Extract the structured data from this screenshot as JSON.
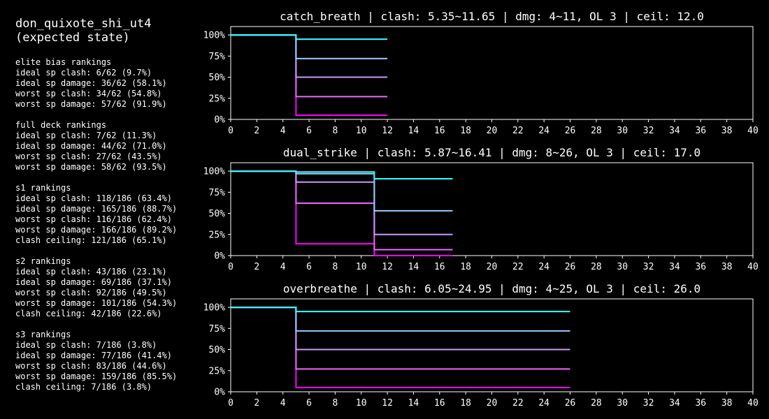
{
  "sidebar": {
    "title": [
      "don_quixote_shi_ut4",
      "(expected state)"
    ],
    "sections": [
      {
        "lines": [
          "elite bias rankings",
          "ideal sp clash: 6/62 (9.7%)",
          "ideal sp damage: 36/62 (58.1%)",
          "worst sp clash: 34/62 (54.8%)",
          "worst sp damage: 57/62 (91.9%)"
        ]
      },
      {
        "lines": [
          "full deck rankings",
          "ideal sp clash: 7/62 (11.3%)",
          "ideal sp damage: 44/62 (71.0%)",
          "worst sp clash: 27/62 (43.5%)",
          "worst sp damage: 58/62 (93.5%)"
        ]
      },
      {
        "lines": [
          "s1 rankings",
          "ideal sp clash: 118/186 (63.4%)",
          "ideal sp damage: 165/186 (88.7%)",
          "worst sp clash: 116/186 (62.4%)",
          "worst sp damage: 166/186 (89.2%)",
          "clash ceiling: 121/186 (65.1%)"
        ]
      },
      {
        "lines": [
          "s2 rankings",
          "ideal sp clash: 43/186 (23.1%)",
          "ideal sp damage: 69/186 (37.1%)",
          "worst sp clash: 92/186 (49.5%)",
          "worst sp damage: 101/186 (54.3%)",
          "clash ceiling: 42/186 (22.6%)"
        ]
      },
      {
        "lines": [
          "s3 rankings",
          "ideal sp clash: 7/186 (3.8%)",
          "ideal sp damage: 77/186 (41.4%)",
          "worst sp clash: 83/186 (44.6%)",
          "worst sp damage: 159/186 (85.5%)",
          "clash ceiling: 7/186 (3.8%)"
        ]
      }
    ]
  },
  "chart_data": [
    {
      "type": "line",
      "title": "catch_breath | clash: 5.35~11.65 | dmg: 4~11, OL 3 | ceil: 12.0",
      "xlim": [
        0,
        40
      ],
      "ylim": [
        0,
        1.1
      ],
      "x_ticks": [
        0,
        2,
        4,
        6,
        8,
        10,
        12,
        14,
        16,
        18,
        20,
        22,
        24,
        26,
        28,
        30,
        32,
        34,
        36,
        38,
        40
      ],
      "y_ticks": [
        0,
        0.25,
        0.5,
        0.75,
        1.0
      ],
      "y_tick_labels": [
        "0%",
        "25%",
        "50%",
        "75%",
        "100%"
      ],
      "step_x": 5,
      "end_x": 12,
      "series": [
        {
          "color": "#ff00ff",
          "y_before": 1.0,
          "y_after": 0.05
        },
        {
          "color": "#ee66ff",
          "y_before": 1.0,
          "y_after": 0.27
        },
        {
          "color": "#cc99ff",
          "y_before": 1.0,
          "y_after": 0.5
        },
        {
          "color": "#99ccff",
          "y_before": 1.0,
          "y_after": 0.72
        },
        {
          "color": "#33ffff",
          "y_before": 1.0,
          "y_after": 0.95
        }
      ]
    },
    {
      "type": "line",
      "title": "dual_strike | clash: 5.87~16.41 | dmg: 8~26, OL 3 | ceil: 17.0",
      "xlim": [
        0,
        40
      ],
      "ylim": [
        0,
        1.1
      ],
      "x_ticks": [
        0,
        2,
        4,
        6,
        8,
        10,
        12,
        14,
        16,
        18,
        20,
        22,
        24,
        26,
        28,
        30,
        32,
        34,
        36,
        38,
        40
      ],
      "y_ticks": [
        0,
        0.25,
        0.5,
        0.75,
        1.0
      ],
      "y_tick_labels": [
        "0%",
        "25%",
        "50%",
        "75%",
        "100%"
      ],
      "step_x1": 5,
      "step_x2": 11,
      "end_x": 17,
      "series": [
        {
          "color": "#ff00ff",
          "y0": 1.0,
          "y1": 0.14,
          "y2": 0.0
        },
        {
          "color": "#ee66ff",
          "y0": 1.0,
          "y1": 0.62,
          "y2": 0.07
        },
        {
          "color": "#cc99ff",
          "y0": 1.0,
          "y1": 0.87,
          "y2": 0.25
        },
        {
          "color": "#99ccff",
          "y0": 1.0,
          "y1": 0.97,
          "y2": 0.53
        },
        {
          "color": "#33ffff",
          "y0": 1.0,
          "y1": 0.99,
          "y2": 0.91
        }
      ]
    },
    {
      "type": "line",
      "title": "overbreathe | clash: 6.05~24.95 | dmg: 4~25, OL 3 | ceil: 26.0",
      "xlim": [
        0,
        40
      ],
      "ylim": [
        0,
        1.1
      ],
      "x_ticks": [
        0,
        2,
        4,
        6,
        8,
        10,
        12,
        14,
        16,
        18,
        20,
        22,
        24,
        26,
        28,
        30,
        32,
        34,
        36,
        38,
        40
      ],
      "y_ticks": [
        0,
        0.25,
        0.5,
        0.75,
        1.0
      ],
      "y_tick_labels": [
        "0%",
        "25%",
        "50%",
        "75%",
        "100%"
      ],
      "step_x": 5,
      "end_x": 26,
      "series": [
        {
          "color": "#ff00ff",
          "y_before": 1.0,
          "y_after": 0.05
        },
        {
          "color": "#ee66ff",
          "y_before": 1.0,
          "y_after": 0.27
        },
        {
          "color": "#cc99ff",
          "y_before": 1.0,
          "y_after": 0.5
        },
        {
          "color": "#99ccff",
          "y_before": 1.0,
          "y_after": 0.72
        },
        {
          "color": "#33ffff",
          "y_before": 1.0,
          "y_after": 0.95
        }
      ]
    }
  ]
}
